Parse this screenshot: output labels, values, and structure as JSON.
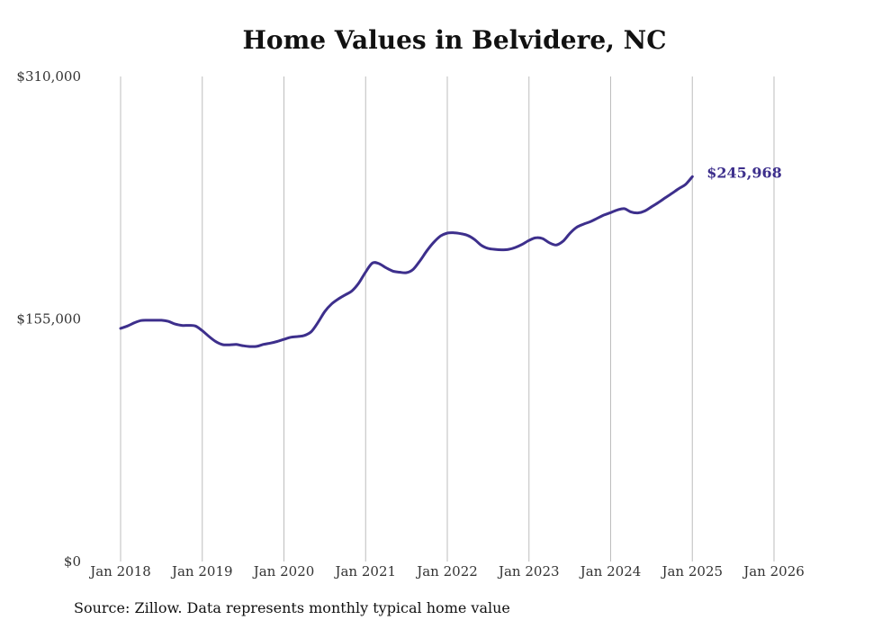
{
  "chart_data": {
    "type": "line",
    "title": "Home Values in Belvidere, NC",
    "source": "Source: Zillow. Data represents monthly typical home value",
    "ylim": [
      0,
      310000
    ],
    "y_ticks": [
      {
        "value": 0,
        "label": "$0"
      },
      {
        "value": 155000,
        "label": "$155,000"
      },
      {
        "value": 310000,
        "label": "$310,000"
      }
    ],
    "x_ticks": [
      "Jan 2018",
      "Jan 2019",
      "Jan 2020",
      "Jan 2021",
      "Jan 2022",
      "Jan 2023",
      "Jan 2024",
      "Jan 2025",
      "Jan 2026"
    ],
    "x_start_year": 2018,
    "line_color": "#3d2f8c",
    "end_label": "$245,968",
    "series": [
      {
        "name": "Typical home value",
        "values": [
          149000,
          150500,
          152500,
          154000,
          154200,
          154200,
          154200,
          153500,
          151800,
          150900,
          150900,
          150500,
          147500,
          143800,
          140500,
          138600,
          138500,
          138700,
          137900,
          137400,
          137500,
          138800,
          139600,
          140600,
          142000,
          143300,
          143800,
          144500,
          146900,
          152800,
          159800,
          164600,
          167800,
          170400,
          173000,
          178000,
          185000,
          190800,
          190300,
          187700,
          185600,
          184900,
          184600,
          186800,
          192300,
          198600,
          204000,
          208000,
          209900,
          210100,
          209500,
          208400,
          205800,
          202100,
          200100,
          199500,
          199200,
          199500,
          200700,
          202700,
          205200,
          206900,
          206400,
          203700,
          202300,
          204700,
          209700,
          213600,
          215600,
          217200,
          219300,
          221400,
          223000,
          224700,
          225500,
          223400,
          222800,
          224000,
          226700,
          229400,
          232400,
          235300,
          238300,
          241000,
          245968
        ]
      }
    ]
  }
}
